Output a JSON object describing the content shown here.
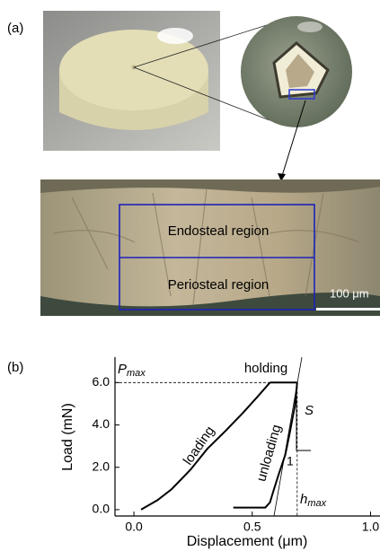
{
  "panel_a": {
    "label": "(a)",
    "regions": [
      "Endosteal region",
      "Periosteal region"
    ],
    "scale_bar": "100 μm"
  },
  "chart_data": {
    "type": "line",
    "panel_label": "(b)",
    "x_label": "Displacement (μm)",
    "y_label": "Load (mN)",
    "xlim": [
      -0.08,
      1.04
    ],
    "ylim": [
      -0.3,
      7.2
    ],
    "xticks": [
      {
        "value": 0,
        "label": "0.0"
      },
      {
        "value": 0.5,
        "label": "0.5"
      },
      {
        "value": 1.0,
        "label": "1.0"
      }
    ],
    "yticks": [
      {
        "value": 0,
        "label": "0.0"
      },
      {
        "value": 2,
        "label": "2.0"
      },
      {
        "value": 4,
        "label": "4.0"
      },
      {
        "value": 6,
        "label": "6.0"
      }
    ],
    "series": [
      {
        "name": "loading",
        "color": "#000000",
        "x": [
          0.03,
          0.1,
          0.16,
          0.24,
          0.31,
          0.39,
          0.46,
          0.52,
          0.575
        ],
        "values": [
          0,
          0.45,
          0.97,
          1.9,
          2.87,
          3.75,
          4.56,
          5.3,
          6.0
        ]
      },
      {
        "name": "holding",
        "color": "#000000",
        "x": [
          0.575,
          0.63,
          0.69
        ],
        "values": [
          6.0,
          6.0,
          6.0
        ]
      },
      {
        "name": "unloading",
        "color": "#000000",
        "x": [
          0.69,
          0.68,
          0.66,
          0.64,
          0.61,
          0.59,
          0.575,
          0.555,
          0.5,
          0.42
        ],
        "values": [
          6.0,
          4.9,
          3.7,
          2.6,
          1.6,
          0.9,
          0.34,
          0.1,
          0.1,
          0.1
        ]
      }
    ],
    "annotations": [
      {
        "text": "P",
        "sub": "max",
        "value": 6.0
      },
      {
        "text": "h",
        "sub": "max",
        "value": 0.69
      },
      {
        "text": "S"
      },
      {
        "text": "1"
      }
    ]
  }
}
